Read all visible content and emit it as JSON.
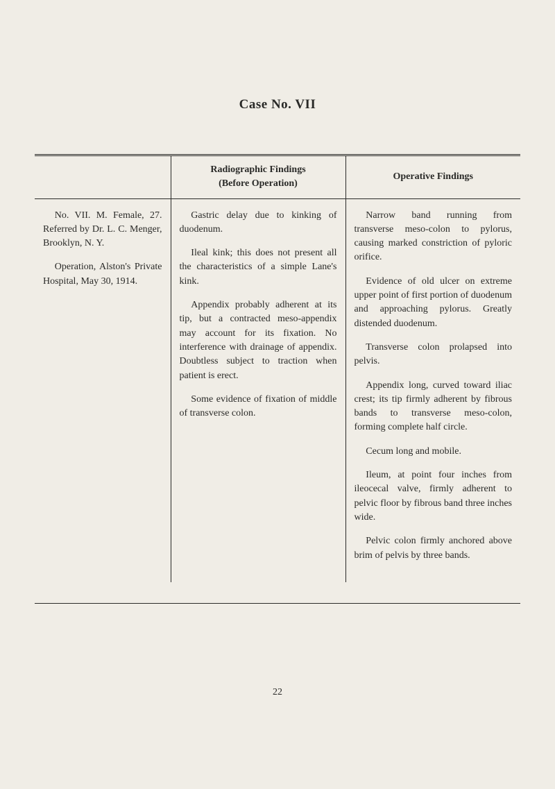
{
  "title": "Case No. VII",
  "headers": {
    "col1": "",
    "col2_line1": "Radiographic Findings",
    "col2_line2": "(Before Operation)",
    "col3": "Operative Findings"
  },
  "col1": {
    "p1": "No. VII. M. Female, 27. Referred by Dr. L. C. Menger, Brooklyn, N. Y.",
    "p2": "Operation, Alston's Private Hospital, May 30, 1914."
  },
  "col2": {
    "p1": "Gastric delay due to kinking of duodenum.",
    "p2": "Ileal kink; this does not present all the characteristics of a simple Lane's kink.",
    "p3": "Appendix probably adherent at its tip, but a contracted meso-appendix may account for its fixation. No interference with drainage of appendix. Doubtless subject to traction when patient is erect.",
    "p4": "Some evidence of fixation of middle of transverse colon."
  },
  "col3": {
    "p1": "Narrow band running from transverse meso-colon to pylorus, causing marked constriction of pyloric orifice.",
    "p2": "Evidence of old ulcer on extreme upper point of first portion of duodenum and approaching pylorus. Greatly distended duodenum.",
    "p3": "Transverse colon prolapsed into pelvis.",
    "p4": "Appendix long, curved toward iliac crest; its tip firmly adherent by fibrous bands to transverse meso-colon, forming complete half circle.",
    "p5": "Cecum long and mobile.",
    "p6": "Ileum, at point four inches from ileocecal valve, firmly adherent to pelvic floor by fibrous band three inches wide.",
    "p7": "Pelvic colon firmly anchored above brim of pelvis by three bands."
  },
  "page_number": "22"
}
